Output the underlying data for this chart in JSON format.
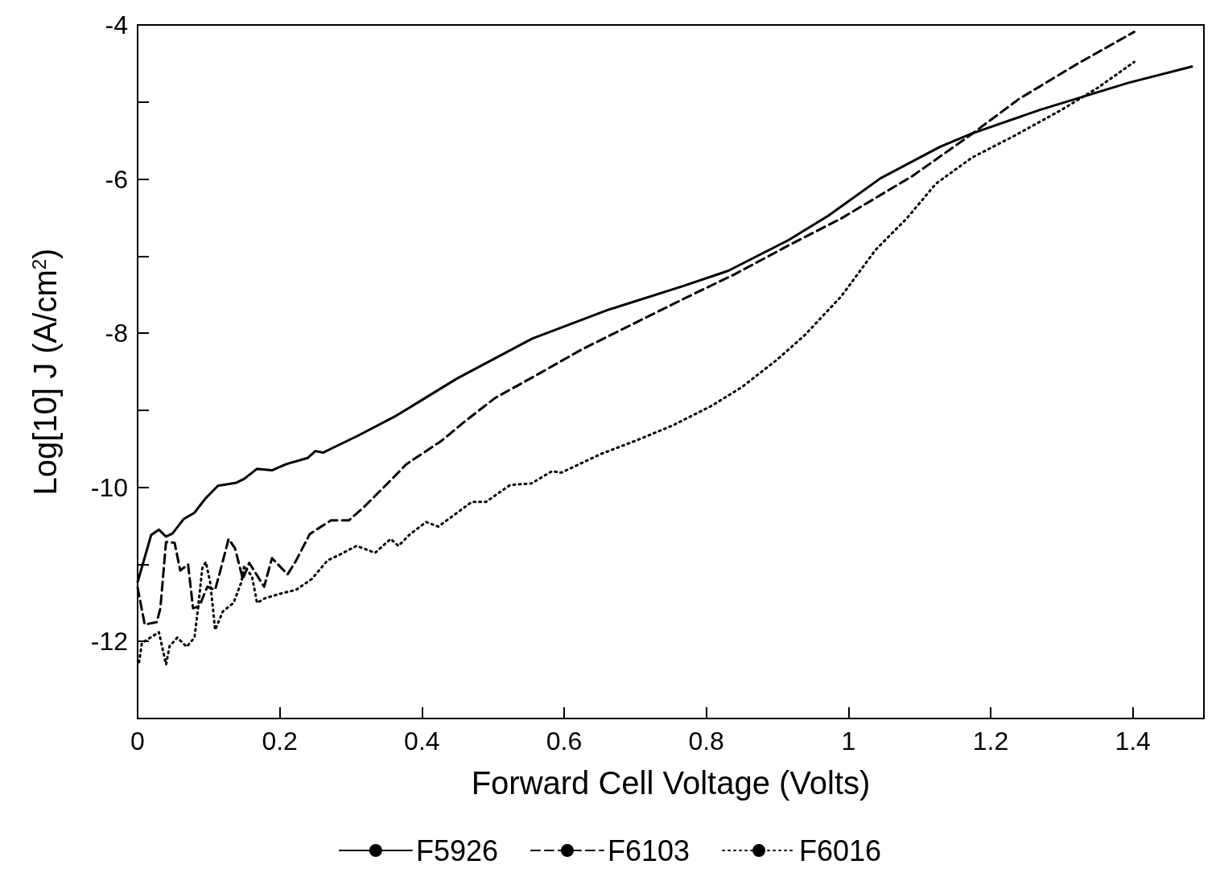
{
  "chart_data": {
    "type": "line",
    "xlabel": "Forward Cell Voltage (Volts)",
    "ylabel": "Log[10] J (A/cm$^{2}$)",
    "xlim": [
      0,
      1.5
    ],
    "ylim": [
      -13,
      -4
    ],
    "xticks": [
      0,
      0.2,
      0.4,
      0.6,
      0.8,
      1,
      1.2,
      1.4
    ],
    "yticks": [
      {
        "value": -13,
        "label": null
      },
      -12,
      {
        "value": -11,
        "label": null
      },
      -10,
      {
        "value": -9,
        "label": null
      },
      -8,
      {
        "value": -7,
        "label": null
      },
      -6,
      {
        "value": -5,
        "label": null
      },
      -4
    ],
    "grid": false,
    "legend": "bottom",
    "marker": "none",
    "series": [
      {
        "name": "F5926",
        "color": "#000000",
        "line_style": "solid",
        "x": [
          0,
          0.019,
          0.03,
          0.04,
          0.049,
          0.065,
          0.08,
          0.095,
          0.113,
          0.139,
          0.15,
          0.168,
          0.189,
          0.209,
          0.239,
          0.25,
          0.261,
          0.272,
          0.31,
          0.364,
          0.449,
          0.555,
          0.661,
          0.767,
          0.831,
          0.916,
          0.971,
          1.045,
          1.129,
          1.173,
          1.27,
          1.394,
          1.483
        ],
        "values": [
          -11.23,
          -10.62,
          -10.55,
          -10.64,
          -10.6,
          -10.41,
          -10.33,
          -10.15,
          -9.98,
          -9.94,
          -9.89,
          -9.76,
          -9.78,
          -9.7,
          -9.62,
          -9.53,
          -9.55,
          -9.5,
          -9.33,
          -9.07,
          -8.59,
          -8.07,
          -7.7,
          -7.39,
          -7.19,
          -6.79,
          -6.48,
          -5.99,
          -5.58,
          -5.41,
          -5.1,
          -4.75,
          -4.54
        ]
      },
      {
        "name": "F6103",
        "color": "#000000",
        "line_style": "dashed",
        "x": [
          0,
          0.01,
          0.027,
          0.032,
          0.04,
          0.052,
          0.06,
          0.071,
          0.078,
          0.087,
          0.098,
          0.109,
          0.115,
          0.128,
          0.137,
          0.148,
          0.157,
          0.178,
          0.189,
          0.211,
          0.223,
          0.242,
          0.253,
          0.272,
          0.297,
          0.319,
          0.356,
          0.378,
          0.427,
          0.461,
          0.503,
          0.558,
          0.625,
          0.697,
          0.769,
          0.841,
          0.916,
          0.99,
          1.09,
          1.167,
          1.24,
          1.321,
          1.402
        ],
        "values": [
          -11.3,
          -11.78,
          -11.75,
          -11.57,
          -10.71,
          -10.72,
          -11.08,
          -11.0,
          -11.57,
          -11.54,
          -11.29,
          -11.33,
          -11.13,
          -10.67,
          -10.79,
          -11.19,
          -10.98,
          -11.29,
          -10.92,
          -11.13,
          -10.95,
          -10.61,
          -10.54,
          -10.43,
          -10.43,
          -10.25,
          -9.91,
          -9.7,
          -9.4,
          -9.14,
          -8.84,
          -8.56,
          -8.21,
          -7.88,
          -7.55,
          -7.23,
          -6.86,
          -6.51,
          -5.96,
          -5.46,
          -4.96,
          -4.51,
          -4.09
        ]
      },
      {
        "name": "F6016",
        "color": "#000000",
        "line_style": "dotted",
        "x": [
          0.002,
          0.006,
          0.03,
          0.04,
          0.045,
          0.056,
          0.069,
          0.08,
          0.085,
          0.091,
          0.096,
          0.102,
          0.106,
          0.109,
          0.12,
          0.135,
          0.146,
          0.15,
          0.161,
          0.168,
          0.179,
          0.201,
          0.223,
          0.245,
          0.267,
          0.283,
          0.308,
          0.334,
          0.356,
          0.367,
          0.383,
          0.406,
          0.423,
          0.47,
          0.49,
          0.524,
          0.554,
          0.583,
          0.596,
          0.651,
          0.702,
          0.752,
          0.808,
          0.85,
          0.9,
          0.938,
          0.99,
          1.038,
          1.082,
          1.123,
          1.174,
          1.233,
          1.3,
          1.35,
          1.402
        ],
        "values": [
          -12.27,
          -12.02,
          -11.88,
          -12.3,
          -12.06,
          -11.95,
          -12.07,
          -11.95,
          -11.57,
          -11.05,
          -10.97,
          -11.23,
          -11.57,
          -11.85,
          -11.61,
          -11.5,
          -11.23,
          -11.02,
          -11.16,
          -11.5,
          -11.44,
          -11.38,
          -11.33,
          -11.19,
          -10.95,
          -10.88,
          -10.76,
          -10.85,
          -10.67,
          -10.76,
          -10.61,
          -10.45,
          -10.51,
          -10.19,
          -10.19,
          -9.97,
          -9.95,
          -9.79,
          -9.81,
          -9.57,
          -9.39,
          -9.2,
          -8.94,
          -8.7,
          -8.34,
          -8.03,
          -7.52,
          -6.92,
          -6.51,
          -6.06,
          -5.72,
          -5.44,
          -5.1,
          -4.82,
          -4.48
        ]
      }
    ]
  }
}
